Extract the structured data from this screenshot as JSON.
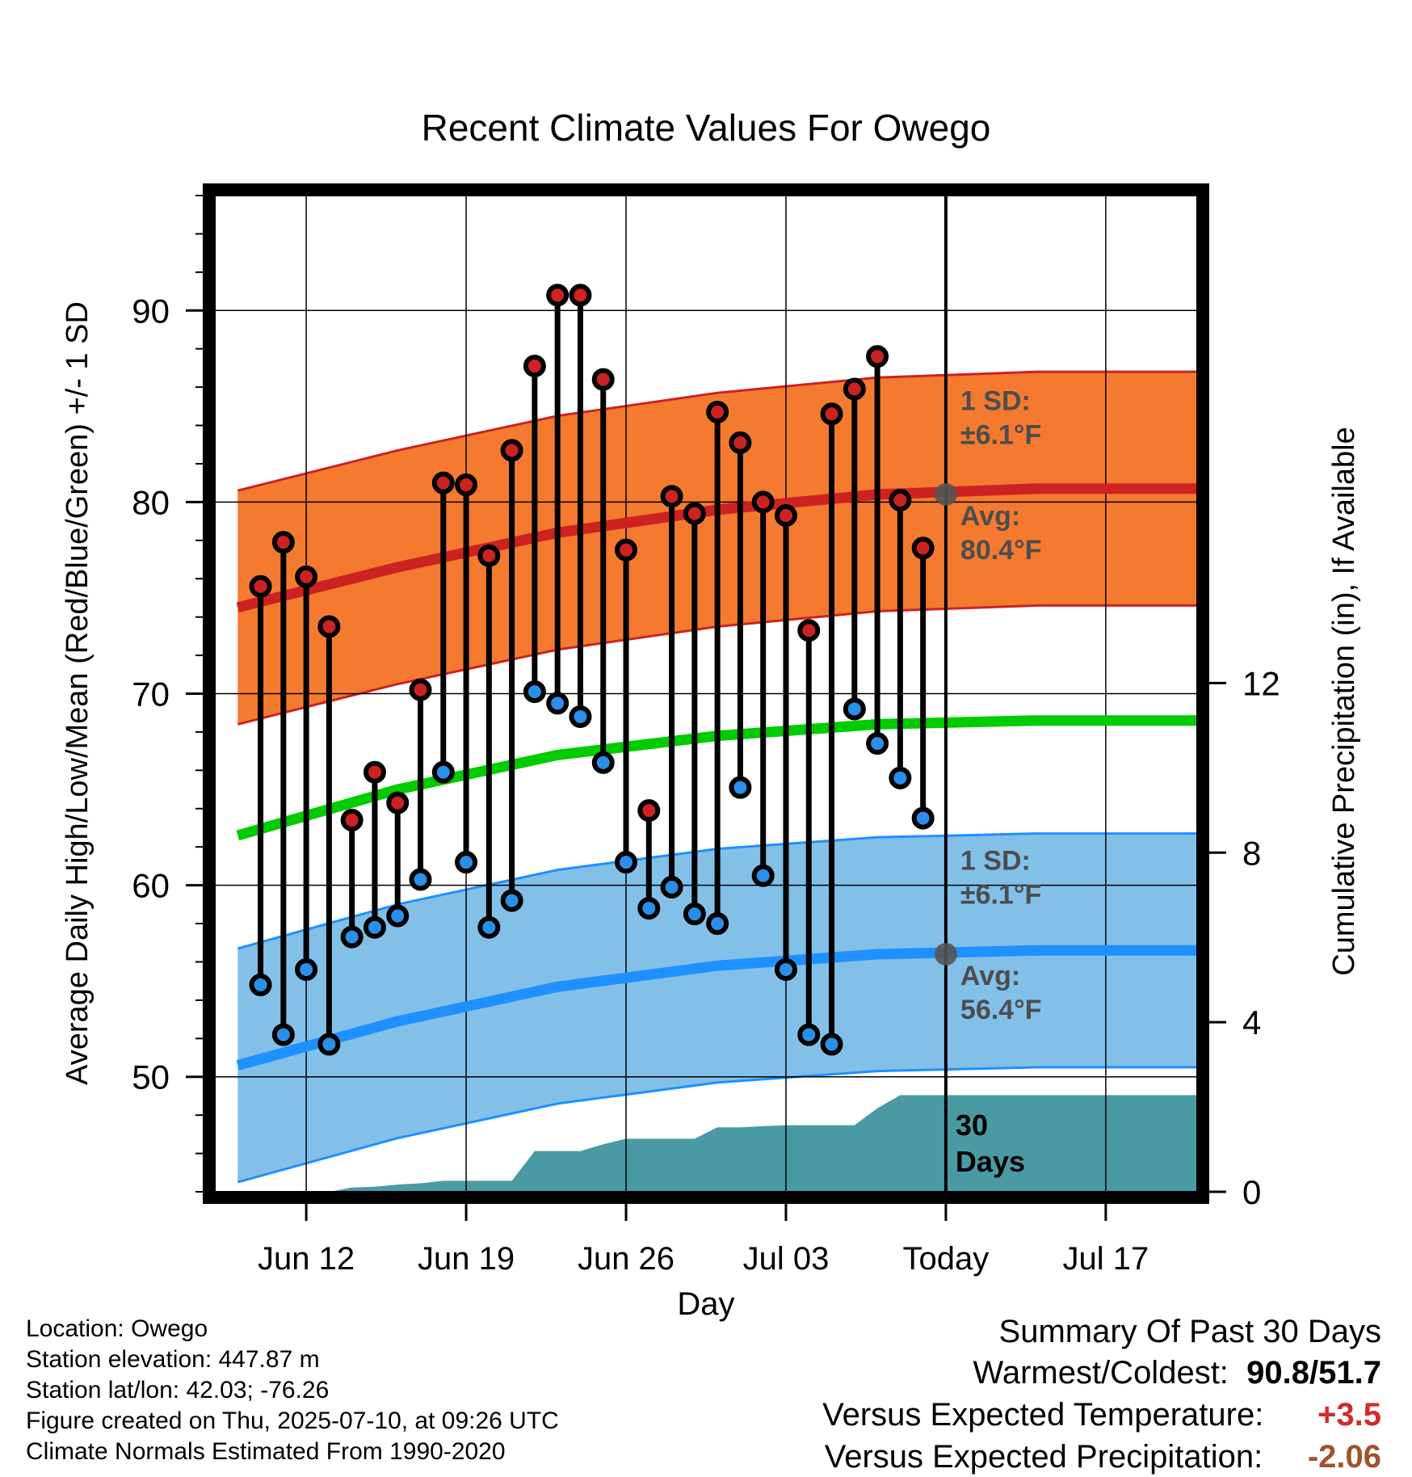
{
  "chart_data": {
    "type": "line",
    "title": "Recent Climate Values For Owego",
    "xlabel": "Day",
    "ylabel": "Average Daily High/Low/Mean (Red/Blue/Green) +/- 1 SD",
    "y2label": "Cumulative Precipitation (in), If Available",
    "ylim": [
      44,
      96
    ],
    "y2lim": [
      0,
      23.5
    ],
    "xlim": [
      "2025-06-08",
      "2025-07-21"
    ],
    "x_ticks": [
      {
        "date": "2025-06-12",
        "label": "Jun 12"
      },
      {
        "date": "2025-06-19",
        "label": "Jun 19"
      },
      {
        "date": "2025-06-26",
        "label": "Jun 26"
      },
      {
        "date": "2025-07-03",
        "label": "Jul 03"
      },
      {
        "date": "2025-07-10",
        "label": "Today"
      },
      {
        "date": "2025-07-17",
        "label": "Jul 17"
      }
    ],
    "y_ticks": [
      50,
      60,
      70,
      80,
      90
    ],
    "y2_ticks": [
      0,
      4,
      8,
      12
    ],
    "grid": true,
    "today": "2025-07-10",
    "today_marker": {
      "label_line1": "30",
      "label_line2": "Days"
    },
    "normals": {
      "x": [
        "2025-06-09",
        "2025-06-16",
        "2025-06-23",
        "2025-06-30",
        "2025-07-07",
        "2025-07-14",
        "2025-07-21"
      ],
      "high_avg": [
        74.5,
        76.6,
        78.4,
        79.6,
        80.4,
        80.7,
        80.7
      ],
      "low_avg": [
        50.6,
        52.9,
        54.7,
        55.8,
        56.4,
        56.6,
        56.6
      ],
      "mean_avg": [
        62.6,
        65.0,
        66.8,
        67.8,
        68.4,
        68.6,
        68.6
      ],
      "sd": 6.1
    },
    "high_annotation": {
      "sd_label": "1 SD:",
      "sd_value": "±6.1°F",
      "avg_label": "Avg:",
      "avg_value": "80.4°F",
      "today_value": 80.4
    },
    "low_annotation": {
      "sd_label": "1 SD:",
      "sd_value": "±6.1°F",
      "avg_label": "Avg:",
      "avg_value": "56.4°F",
      "today_value": 56.4
    },
    "series": [
      {
        "name": "High",
        "x": [
          "2025-06-10",
          "2025-06-11",
          "2025-06-12",
          "2025-06-13",
          "2025-06-14",
          "2025-06-15",
          "2025-06-16",
          "2025-06-17",
          "2025-06-18",
          "2025-06-19",
          "2025-06-20",
          "2025-06-21",
          "2025-06-22",
          "2025-06-23",
          "2025-06-24",
          "2025-06-25",
          "2025-06-26",
          "2025-06-27",
          "2025-06-28",
          "2025-06-29",
          "2025-06-30",
          "2025-07-01",
          "2025-07-02",
          "2025-07-03",
          "2025-07-04",
          "2025-07-05",
          "2025-07-06",
          "2025-07-07",
          "2025-07-08",
          "2025-07-09"
        ],
        "values": [
          75.6,
          77.9,
          76.1,
          73.5,
          63.4,
          65.9,
          64.3,
          70.2,
          81.0,
          80.9,
          77.2,
          82.7,
          87.1,
          90.8,
          90.8,
          86.4,
          77.5,
          63.9,
          80.3,
          79.4,
          84.7,
          83.1,
          80.0,
          79.3,
          73.3,
          84.6,
          85.9,
          87.6,
          80.1,
          77.6
        ]
      },
      {
        "name": "Low",
        "x": [
          "2025-06-10",
          "2025-06-11",
          "2025-06-12",
          "2025-06-13",
          "2025-06-14",
          "2025-06-15",
          "2025-06-16",
          "2025-06-17",
          "2025-06-18",
          "2025-06-19",
          "2025-06-20",
          "2025-06-21",
          "2025-06-22",
          "2025-06-23",
          "2025-06-24",
          "2025-06-25",
          "2025-06-26",
          "2025-06-27",
          "2025-06-28",
          "2025-06-29",
          "2025-06-30",
          "2025-07-01",
          "2025-07-02",
          "2025-07-03",
          "2025-07-04",
          "2025-07-05",
          "2025-07-06",
          "2025-07-07",
          "2025-07-08",
          "2025-07-09"
        ],
        "values": [
          54.8,
          52.2,
          55.6,
          51.7,
          57.3,
          57.8,
          58.4,
          60.3,
          65.9,
          61.2,
          57.8,
          59.2,
          70.1,
          69.5,
          68.8,
          66.4,
          61.2,
          58.8,
          59.9,
          58.5,
          58.0,
          65.1,
          60.5,
          55.6,
          52.2,
          51.7,
          69.2,
          67.4,
          65.6,
          63.5
        ]
      },
      {
        "name": "Cumulative Precipitation",
        "x": [
          "2025-06-10",
          "2025-06-11",
          "2025-06-12",
          "2025-06-13",
          "2025-06-14",
          "2025-06-15",
          "2025-06-16",
          "2025-06-17",
          "2025-06-18",
          "2025-06-19",
          "2025-06-20",
          "2025-06-21",
          "2025-06-22",
          "2025-06-23",
          "2025-06-24",
          "2025-06-25",
          "2025-06-26",
          "2025-06-27",
          "2025-06-28",
          "2025-06-29",
          "2025-06-30",
          "2025-07-01",
          "2025-07-02",
          "2025-07-03",
          "2025-07-04",
          "2025-07-05",
          "2025-07-06",
          "2025-07-07",
          "2025-07-08",
          "2025-07-09",
          "2025-07-10",
          "2025-07-21"
        ],
        "values": [
          0.0,
          0.0,
          0.0,
          0.0,
          0.1,
          0.12,
          0.17,
          0.2,
          0.26,
          0.26,
          0.26,
          0.26,
          0.96,
          0.96,
          0.96,
          1.12,
          1.25,
          1.25,
          1.25,
          1.25,
          1.52,
          1.52,
          1.55,
          1.57,
          1.57,
          1.57,
          1.57,
          1.97,
          2.28,
          2.28,
          2.28,
          2.28
        ]
      }
    ]
  },
  "info": {
    "location": "Location: Owego",
    "elevation": "Station elevation: 447.87 m",
    "latlon": "Station lat/lon: 42.03; -76.26",
    "created": "Figure created on Thu, 2025-07-10, at 09:26 UTC",
    "normals_period": "Climate Normals Estimated From 1990-2020"
  },
  "summary": {
    "title": "Summary Of Past 30 Days",
    "warm_cold_label": "Warmest/Coldest:",
    "warmest": "90.8",
    "slash": "/",
    "coldest": "51.7",
    "temp_label": "Versus Expected Temperature:",
    "temp_value": "+3.5",
    "precip_label": "Versus Expected Precipitation:",
    "precip_value": "-2.06"
  },
  "colors": {
    "high_band": "#f47a30",
    "high_line": "#cc2222",
    "low_band": "#82c0e8",
    "low_line": "#1e90ff",
    "mean_line": "#00cc00",
    "precip_fill": "#4a9aa4",
    "high_marker": "#cc2222",
    "low_marker": "#2a8fe8",
    "annotation_text": "#4d4d4d",
    "temp_value": "#d12a2a",
    "precip_value": "#a0522d"
  }
}
